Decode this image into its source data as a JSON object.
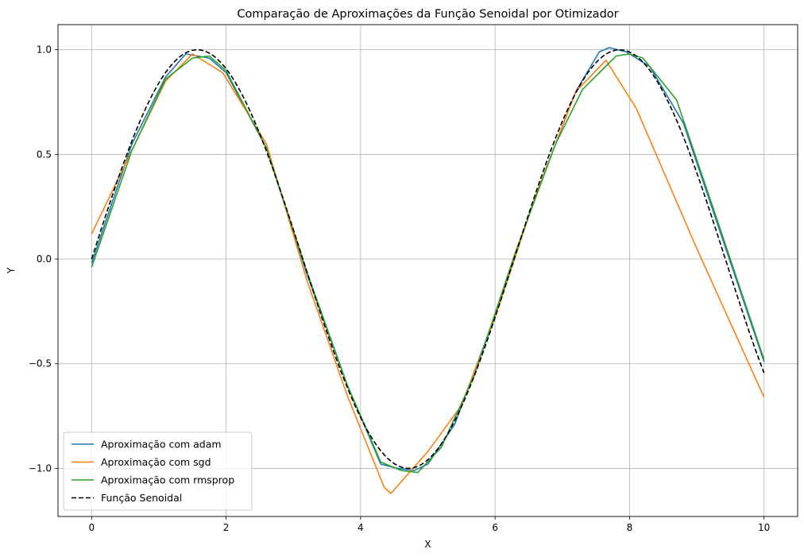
{
  "chart_data": {
    "type": "line",
    "title": "Comparação de Aproximações da Função Senoidal por Otimizador",
    "xlabel": "X",
    "ylabel": "Y",
    "xlim": [
      -0.5,
      10.5
    ],
    "ylim": [
      -1.23,
      1.12
    ],
    "xticks": [
      0,
      2,
      4,
      6,
      8,
      10
    ],
    "xtick_labels": [
      "0",
      "2",
      "4",
      "6",
      "8",
      "10"
    ],
    "yticks": [
      -1.0,
      -0.5,
      0.0,
      0.5,
      1.0
    ],
    "ytick_labels": [
      "−1.0",
      "−0.5",
      "0.0",
      "0.5",
      "1.0"
    ],
    "grid": true,
    "legend_position": "lower-left",
    "series": [
      {
        "name": "Aproximação com adam",
        "color": "#1f77b4",
        "style": "solid",
        "x": [
          0,
          0.6,
          1.1,
          1.4,
          1.75,
          2.0,
          2.6,
          3.2,
          3.8,
          4.3,
          4.55,
          4.8,
          5.0,
          5.4,
          6.0,
          6.6,
          7.2,
          7.55,
          7.7,
          7.95,
          8.3,
          8.8,
          9.4,
          10.0
        ],
        "y": [
          -0.02,
          0.55,
          0.87,
          0.98,
          0.96,
          0.89,
          0.53,
          -0.07,
          -0.6,
          -0.98,
          -1.0,
          -1.01,
          -0.98,
          -0.79,
          -0.27,
          0.3,
          0.8,
          0.99,
          1.01,
          0.99,
          0.92,
          0.65,
          0.08,
          -0.49
        ]
      },
      {
        "name": "Aproximação com sgd",
        "color": "#ff7f0e",
        "style": "solid",
        "x": [
          0,
          0.6,
          1.1,
          1.5,
          1.95,
          2.6,
          3.2,
          3.8,
          4.35,
          4.45,
          5.0,
          5.5,
          6.0,
          6.6,
          7.2,
          7.65,
          8.1,
          9.0,
          10.0
        ],
        "y": [
          0.12,
          0.52,
          0.85,
          0.98,
          0.89,
          0.55,
          -0.1,
          -0.65,
          -1.09,
          -1.12,
          -0.92,
          -0.7,
          -0.28,
          0.3,
          0.8,
          0.95,
          0.72,
          0.05,
          -0.66
        ]
      },
      {
        "name": "Aproximação com rmsprop",
        "color": "#2ca02c",
        "style": "solid",
        "x": [
          0,
          0.6,
          1.1,
          1.5,
          1.75,
          2.0,
          2.6,
          3.2,
          3.8,
          4.3,
          4.6,
          4.85,
          5.2,
          5.7,
          6.3,
          6.9,
          7.3,
          7.8,
          8.0,
          8.2,
          8.7,
          9.3,
          10.0
        ],
        "y": [
          -0.04,
          0.52,
          0.86,
          0.96,
          0.97,
          0.9,
          0.53,
          -0.06,
          -0.6,
          -0.97,
          -1.01,
          -1.02,
          -0.9,
          -0.55,
          0.03,
          0.55,
          0.81,
          0.97,
          0.98,
          0.96,
          0.76,
          0.19,
          -0.48
        ]
      },
      {
        "name": "Função Senoidal",
        "color": "#000000",
        "style": "dashed",
        "function": "sin",
        "x_range": [
          0,
          10
        ],
        "samples": 200
      }
    ]
  }
}
